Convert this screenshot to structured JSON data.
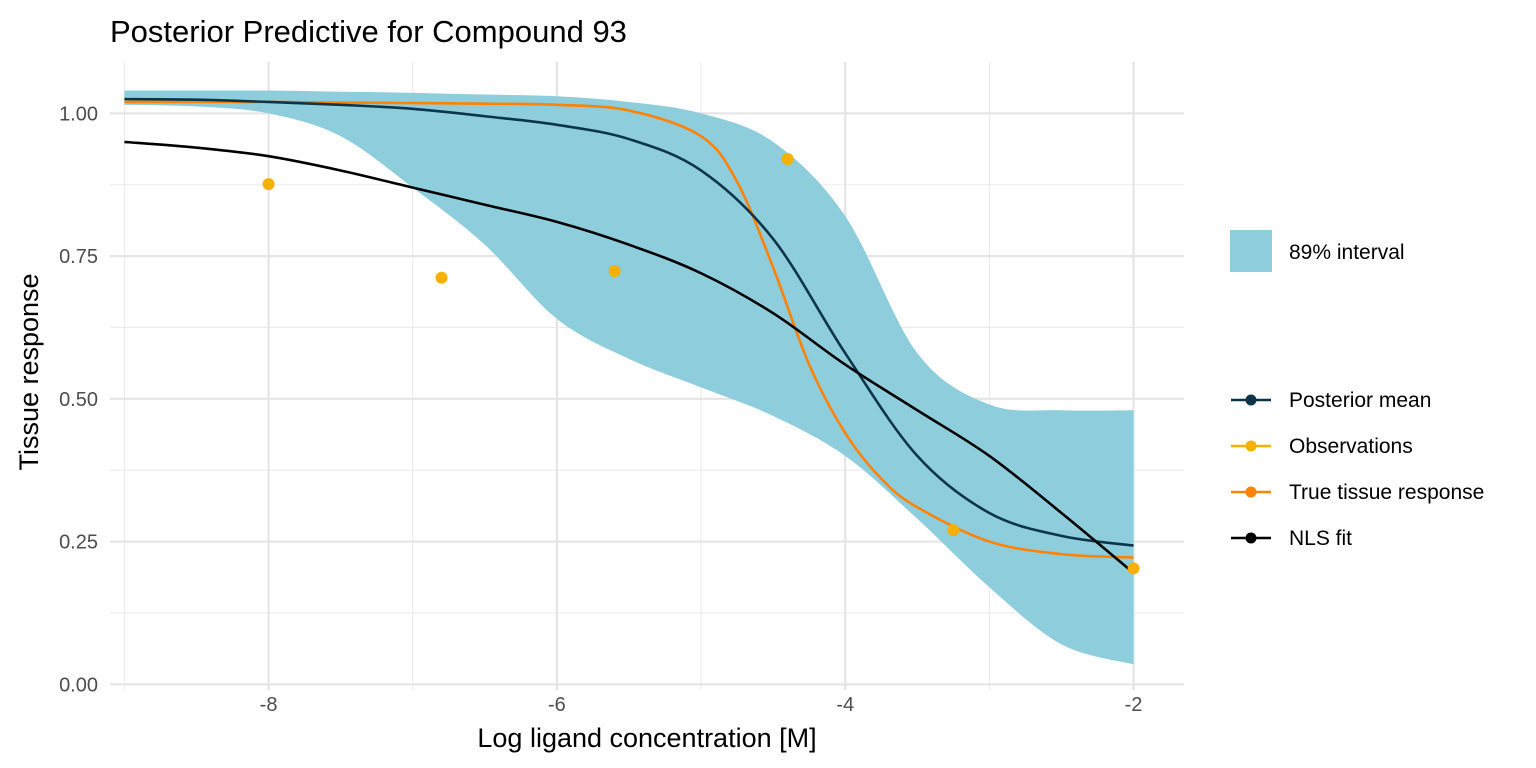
{
  "chart_data": {
    "type": "line",
    "title": "Posterior Predictive for Compound 93",
    "xlabel": "Log ligand concentration [M]",
    "ylabel": "Tissue response",
    "xlim": [
      -9.1,
      -1.65
    ],
    "ylim": [
      -0.01,
      1.09
    ],
    "x_ticks": [
      -8,
      -6,
      -4,
      -2
    ],
    "x_tick_labels": [
      "-8",
      "-6",
      "-4",
      "-2"
    ],
    "y_ticks": [
      0,
      0.25,
      0.5,
      0.75,
      1
    ],
    "y_tick_labels": [
      "0.00",
      "0.25",
      "0.50",
      "0.75",
      "1.00"
    ],
    "grid": true,
    "legend_position": "right",
    "interval": {
      "name": "89% interval",
      "color": "#8ecddc",
      "x": [
        -9,
        -8.5,
        -8,
        -7.5,
        -7,
        -6.5,
        -6,
        -5.5,
        -5,
        -4.5,
        -4,
        -3.5,
        -3,
        -2.5,
        -2
      ],
      "lower": [
        1.015,
        1.012,
        1.0,
        0.96,
        0.87,
        0.77,
        0.64,
        0.57,
        0.52,
        0.47,
        0.4,
        0.29,
        0.17,
        0.07,
        0.035
      ],
      "upper": [
        1.04,
        1.04,
        1.04,
        1.038,
        1.036,
        1.033,
        1.03,
        1.02,
        1.0,
        0.95,
        0.82,
        0.58,
        0.49,
        0.48,
        0.48
      ]
    },
    "series": [
      {
        "name": "Posterior mean",
        "color": "#0d3549",
        "x": [
          -9,
          -8.5,
          -8,
          -7.5,
          -7,
          -6.5,
          -6,
          -5.5,
          -5,
          -4.5,
          -4,
          -3.5,
          -3,
          -2.5,
          -2
        ],
        "y": [
          1.025,
          1.024,
          1.02,
          1.015,
          1.008,
          0.995,
          0.98,
          0.955,
          0.9,
          0.78,
          0.58,
          0.4,
          0.3,
          0.26,
          0.243
        ]
      },
      {
        "name": "Observations",
        "color": "#f7b000",
        "points": [
          {
            "x": -8.0,
            "y": 0.876
          },
          {
            "x": -6.8,
            "y": 0.712
          },
          {
            "x": -5.6,
            "y": 0.724
          },
          {
            "x": -4.4,
            "y": 0.92
          },
          {
            "x": -3.25,
            "y": 0.27
          },
          {
            "x": -2.0,
            "y": 0.203
          }
        ]
      },
      {
        "name": "True tissue response",
        "color": "#ff8200",
        "x": [
          -9,
          -8.5,
          -8,
          -7.5,
          -7,
          -6.5,
          -6,
          -5.5,
          -5,
          -4.75,
          -4.5,
          -4.25,
          -4,
          -3.75,
          -3.5,
          -3,
          -2.5,
          -2
        ],
        "y": [
          1.02,
          1.02,
          1.02,
          1.019,
          1.018,
          1.017,
          1.015,
          1.005,
          0.96,
          0.88,
          0.73,
          0.56,
          0.44,
          0.36,
          0.31,
          0.25,
          0.228,
          0.222
        ]
      },
      {
        "name": "NLS fit",
        "color": "#000000",
        "x": [
          -9,
          -8.5,
          -8,
          -7.5,
          -7,
          -6.5,
          -6,
          -5.5,
          -5,
          -4.5,
          -4,
          -3.5,
          -3,
          -2.5,
          -2
        ],
        "y": [
          0.95,
          0.94,
          0.925,
          0.9,
          0.87,
          0.84,
          0.81,
          0.77,
          0.72,
          0.65,
          0.56,
          0.48,
          0.4,
          0.3,
          0.195
        ]
      }
    ]
  }
}
